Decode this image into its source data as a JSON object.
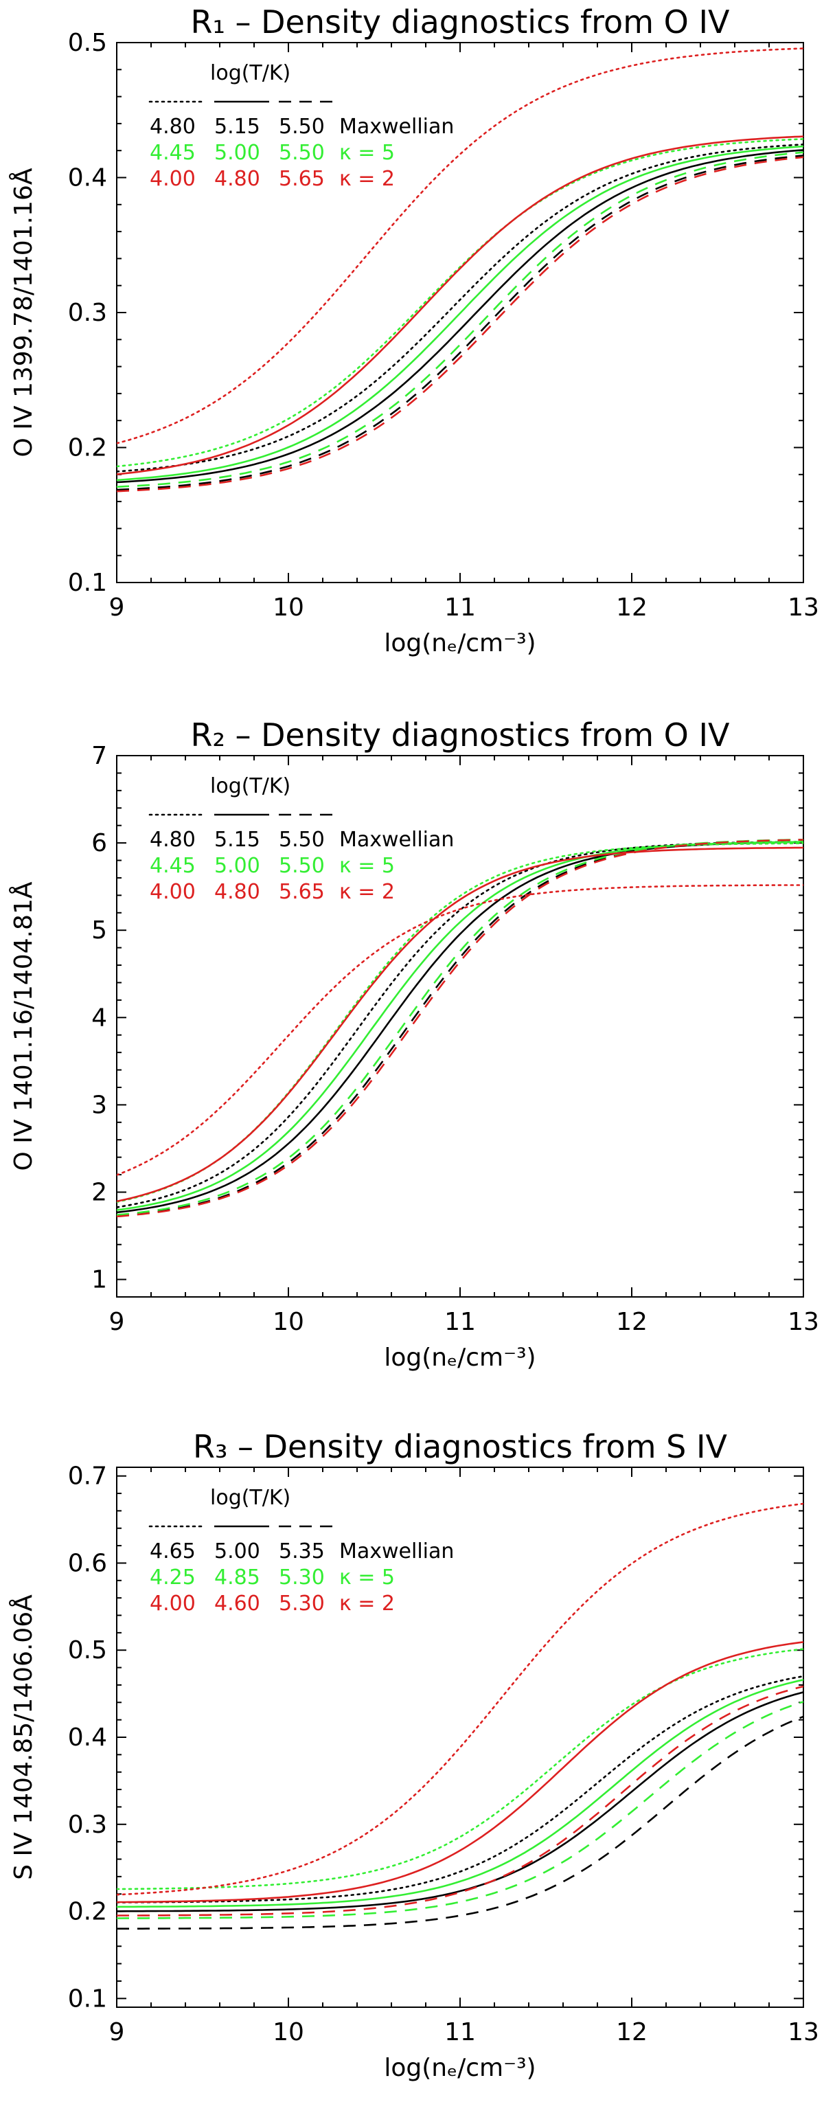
{
  "colors": {
    "black": "#000000",
    "green": "#33ee33",
    "red": "#dd2020"
  },
  "chart_data": [
    {
      "type": "line",
      "id": "r1",
      "title": "R₁ – Density diagnostics from O IV",
      "xlabel": "log(nₑ/cm⁻³)",
      "ylabel": "O IV 1399.78/1401.16Å",
      "xlim": [
        9,
        13
      ],
      "ylim": [
        0.1,
        0.5
      ],
      "xticks": [
        "9",
        "10",
        "11",
        "12",
        "13"
      ],
      "yticks": [
        "0.1",
        "0.2",
        "0.3",
        "0.4",
        "0.5"
      ],
      "legend": {
        "header": "log(T/K)",
        "rows": [
          {
            "values": [
              "4.80",
              "5.15",
              "5.50"
            ],
            "label": "Maxwellian",
            "color": "black"
          },
          {
            "values": [
              "4.45",
              "5.00",
              "5.50"
            ],
            "label": "κ = 5",
            "color": "green"
          },
          {
            "values": [
              "4.00",
              "4.80",
              "5.65"
            ],
            "label": "κ = 2",
            "color": "red"
          }
        ]
      },
      "series": [
        {
          "name": "Maxwellian 4.80",
          "color": "black",
          "dash": "dotted",
          "low": 0.178,
          "high": 0.428,
          "mid": 10.95,
          "width": 0.48
        },
        {
          "name": "Maxwellian 5.15",
          "color": "black",
          "dash": "solid",
          "low": 0.171,
          "high": 0.425,
          "mid": 11.08,
          "width": 0.48
        },
        {
          "name": "Maxwellian 5.50",
          "color": "black",
          "dash": "dashed",
          "low": 0.166,
          "high": 0.422,
          "mid": 11.18,
          "width": 0.48
        },
        {
          "name": "κ=5 4.45",
          "color": "green",
          "dash": "dotted",
          "low": 0.18,
          "high": 0.431,
          "mid": 10.78,
          "width": 0.48
        },
        {
          "name": "κ=5 5.00",
          "color": "green",
          "dash": "solid",
          "low": 0.172,
          "high": 0.427,
          "mid": 11.0,
          "width": 0.48
        },
        {
          "name": "κ=5 5.50",
          "color": "green",
          "dash": "dashed",
          "low": 0.168,
          "high": 0.424,
          "mid": 11.15,
          "width": 0.48
        },
        {
          "name": "κ=2 4.00",
          "color": "red",
          "dash": "dotted",
          "low": 0.185,
          "high": 0.498,
          "mid": 10.45,
          "width": 0.52
        },
        {
          "name": "κ=2 4.80",
          "color": "red",
          "dash": "solid",
          "low": 0.174,
          "high": 0.433,
          "mid": 10.78,
          "width": 0.48
        },
        {
          "name": "κ=2 5.65",
          "color": "red",
          "dash": "dashed",
          "low": 0.165,
          "high": 0.421,
          "mid": 11.2,
          "width": 0.48
        }
      ]
    },
    {
      "type": "line",
      "id": "r2",
      "title": "R₂ – Density diagnostics from O IV",
      "xlabel": "log(nₑ/cm⁻³)",
      "ylabel": "O IV 1401.16/1404.81Å",
      "xlim": [
        9,
        13
      ],
      "ylim": [
        0.8,
        7
      ],
      "xticks": [
        "9",
        "10",
        "11",
        "12",
        "13"
      ],
      "yticks": [
        "1",
        "2",
        "3",
        "4",
        "5",
        "6",
        "7"
      ],
      "legend": {
        "header": "log(T/K)",
        "rows": [
          {
            "values": [
              "4.80",
              "5.15",
              "5.50"
            ],
            "label": "Maxwellian",
            "color": "black"
          },
          {
            "values": [
              "4.45",
              "5.00",
              "5.50"
            ],
            "label": "κ = 5",
            "color": "green"
          },
          {
            "values": [
              "4.00",
              "4.80",
              "5.65"
            ],
            "label": "κ = 2",
            "color": "red"
          }
        ]
      },
      "series": [
        {
          "name": "Maxwellian 4.80",
          "color": "black",
          "dash": "dotted",
          "low": 1.7,
          "high": 6.02,
          "mid": 10.4,
          "width": 0.4
        },
        {
          "name": "Maxwellian 5.15",
          "color": "black",
          "dash": "solid",
          "low": 1.68,
          "high": 6.02,
          "mid": 10.55,
          "width": 0.4
        },
        {
          "name": "Maxwellian 5.50",
          "color": "black",
          "dash": "dashed",
          "low": 1.66,
          "high": 6.05,
          "mid": 10.68,
          "width": 0.4
        },
        {
          "name": "κ=5 4.45",
          "color": "green",
          "dash": "dotted",
          "low": 1.72,
          "high": 6.0,
          "mid": 10.28,
          "width": 0.4
        },
        {
          "name": "κ=5 5.00",
          "color": "green",
          "dash": "solid",
          "low": 1.69,
          "high": 6.02,
          "mid": 10.48,
          "width": 0.4
        },
        {
          "name": "κ=5 5.50",
          "color": "green",
          "dash": "dashed",
          "low": 1.67,
          "high": 6.05,
          "mid": 10.65,
          "width": 0.4
        },
        {
          "name": "κ=2 4.00",
          "color": "red",
          "dash": "dotted",
          "low": 1.85,
          "high": 5.52,
          "mid": 9.95,
          "width": 0.42
        },
        {
          "name": "κ=2 4.80",
          "color": "red",
          "dash": "solid",
          "low": 1.73,
          "high": 5.95,
          "mid": 10.28,
          "width": 0.4
        },
        {
          "name": "κ=2 5.65",
          "color": "red",
          "dash": "dashed",
          "low": 1.66,
          "high": 6.05,
          "mid": 10.7,
          "width": 0.4
        }
      ]
    },
    {
      "type": "line",
      "id": "r3",
      "title": "R₃ – Density diagnostics from S IV",
      "xlabel": "log(nₑ/cm⁻³)",
      "ylabel": "S IV 1404.85/1406.06Å",
      "xlim": [
        9,
        13
      ],
      "ylim": [
        0.09,
        0.71
      ],
      "xticks": [
        "9",
        "10",
        "11",
        "12",
        "13"
      ],
      "yticks": [
        "0.1",
        "0.2",
        "0.3",
        "0.4",
        "0.5",
        "0.6",
        "0.7"
      ],
      "legend": {
        "header": "log(T/K)",
        "rows": [
          {
            "values": [
              "4.65",
              "5.00",
              "5.35"
            ],
            "label": "Maxwellian",
            "color": "black"
          },
          {
            "values": [
              "4.25",
              "4.85",
              "5.30"
            ],
            "label": "κ = 5",
            "color": "green"
          },
          {
            "values": [
              "4.00",
              "4.60",
              "5.30"
            ],
            "label": "κ = 2",
            "color": "red"
          }
        ]
      },
      "series": [
        {
          "name": "Maxwellian 4.65",
          "color": "black",
          "dash": "dotted",
          "low": 0.21,
          "high": 0.485,
          "mid": 11.8,
          "width": 0.42
        },
        {
          "name": "Maxwellian 5.00",
          "color": "black",
          "dash": "solid",
          "low": 0.2,
          "high": 0.475,
          "mid": 12.0,
          "width": 0.42
        },
        {
          "name": "Maxwellian 5.35",
          "color": "black",
          "dash": "dashed",
          "low": 0.18,
          "high": 0.46,
          "mid": 12.2,
          "width": 0.42
        },
        {
          "name": "κ=5 4.25",
          "color": "green",
          "dash": "dotted",
          "low": 0.225,
          "high": 0.51,
          "mid": 11.55,
          "width": 0.42
        },
        {
          "name": "κ=5 4.85",
          "color": "green",
          "dash": "solid",
          "low": 0.205,
          "high": 0.485,
          "mid": 11.9,
          "width": 0.42
        },
        {
          "name": "κ=5 5.30",
          "color": "green",
          "dash": "dashed",
          "low": 0.192,
          "high": 0.47,
          "mid": 12.1,
          "width": 0.42
        },
        {
          "name": "κ=2 4.00",
          "color": "red",
          "dash": "dotted",
          "low": 0.215,
          "high": 0.68,
          "mid": 11.25,
          "width": 0.48
        },
        {
          "name": "κ=2 4.60",
          "color": "red",
          "dash": "solid",
          "low": 0.21,
          "high": 0.52,
          "mid": 11.6,
          "width": 0.42
        },
        {
          "name": "κ=2 5.30",
          "color": "red",
          "dash": "dashed",
          "low": 0.195,
          "high": 0.48,
          "mid": 11.95,
          "width": 0.42
        }
      ]
    }
  ]
}
